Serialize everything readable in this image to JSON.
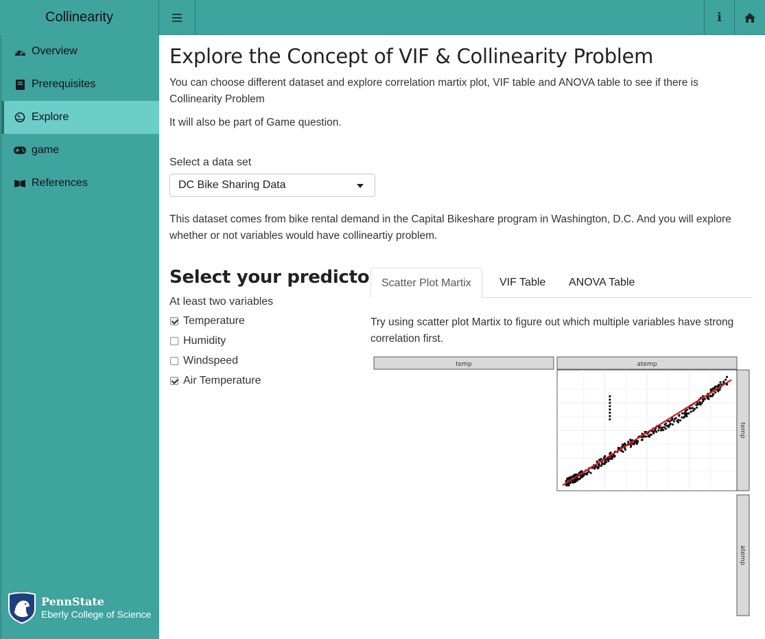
{
  "app": {
    "title": "Collinearity"
  },
  "sidebar": {
    "items": [
      {
        "label": "Overview",
        "icon": "dashboard-icon"
      },
      {
        "label": "Prerequisites",
        "icon": "book-icon"
      },
      {
        "label": "Explore",
        "icon": "gauge-icon",
        "active": true
      },
      {
        "label": "game",
        "icon": "gamepad-icon"
      },
      {
        "label": "References",
        "icon": "leanpub-icon"
      }
    ],
    "footer": {
      "name": "PennState",
      "college": "Eberly College of Science"
    }
  },
  "main": {
    "title": "Explore the Concept of VIF & Collinearity Problem",
    "intro": "You can choose different dataset and explore correlation martix plot, VIF table and ANOVA table to see if there is Collinearity Problem",
    "intro2": "It will also be part of Game question.",
    "dataset_label": "Select a data set",
    "dataset_value": "DC Bike Sharing Data",
    "dataset_desc": "This dataset comes from bike rental demand in the Capital Bikeshare program in Washington, D.C. And you will explore whether or not variables would have collineartiy problem.",
    "predictors": {
      "heading": "Select your predictors",
      "hint": "At least two variables",
      "options": [
        {
          "label": "Temperature",
          "checked": true
        },
        {
          "label": "Humidity",
          "checked": false
        },
        {
          "label": "Windspeed",
          "checked": false
        },
        {
          "label": "Air Temperature",
          "checked": true
        }
      ]
    },
    "tabs": [
      {
        "label": "Scatter Plot Martix",
        "active": true
      },
      {
        "label": "VIF Table"
      },
      {
        "label": "ANOVA Table"
      }
    ],
    "tab_hint": "Try using scatter plot Martix to figure out which multiple variables have strong correlation first."
  },
  "colors": {
    "teal": "#3fa39e",
    "active": "#6ccdc9",
    "fit_line": "#d11a1a"
  },
  "chart_data": {
    "type": "scatter",
    "panel_labels": {
      "columns": [
        "temp",
        "atemp"
      ],
      "rows": [
        "temp",
        "atemp"
      ]
    },
    "x_name": "atemp",
    "y_name": "temp",
    "fit": "linear",
    "clusters": [
      {
        "x_range": [
          0.02,
          0.12
        ],
        "y_range": [
          0.02,
          0.1
        ]
      },
      {
        "x_range": [
          0.12,
          0.4
        ],
        "y_range": [
          0.1,
          0.38
        ]
      },
      {
        "x_range": [
          0.4,
          0.7
        ],
        "y_range": [
          0.38,
          0.62
        ]
      },
      {
        "x_range": [
          0.7,
          0.98
        ],
        "y_range": [
          0.62,
          0.96
        ]
      }
    ],
    "outliers": {
      "x": 0.28,
      "y_values": [
        0.6,
        0.63,
        0.66,
        0.69,
        0.72,
        0.75,
        0.78,
        0.81
      ]
    }
  }
}
